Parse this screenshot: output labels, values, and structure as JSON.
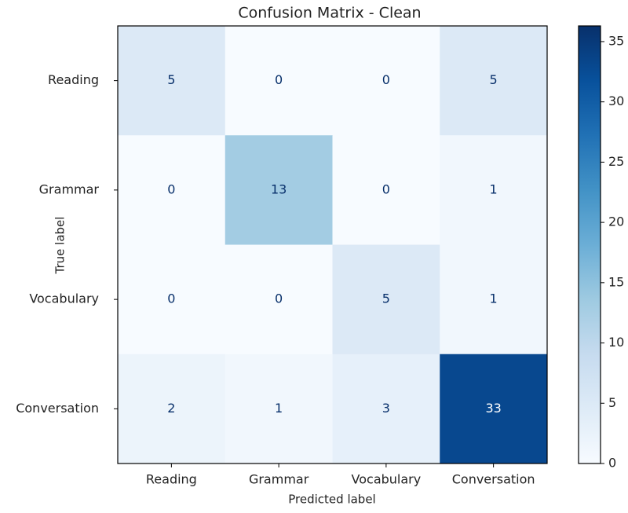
{
  "chart_data": {
    "type": "heatmap",
    "title": "Confusion Matrix - Clean",
    "xlabel": "Predicted label",
    "ylabel": "True label",
    "columns": [
      "Reading",
      "Grammar",
      "Vocabulary",
      "Conversation"
    ],
    "rows": [
      "Reading",
      "Grammar",
      "Vocabulary",
      "Conversation"
    ],
    "values": [
      [
        5,
        0,
        0,
        5
      ],
      [
        0,
        13,
        0,
        1
      ],
      [
        0,
        0,
        5,
        1
      ],
      [
        2,
        1,
        3,
        33
      ]
    ],
    "colormap": "Blues",
    "clim": [
      0,
      36.3
    ],
    "cticks": [
      0,
      5,
      10,
      15,
      20,
      25,
      30,
      35
    ]
  }
}
